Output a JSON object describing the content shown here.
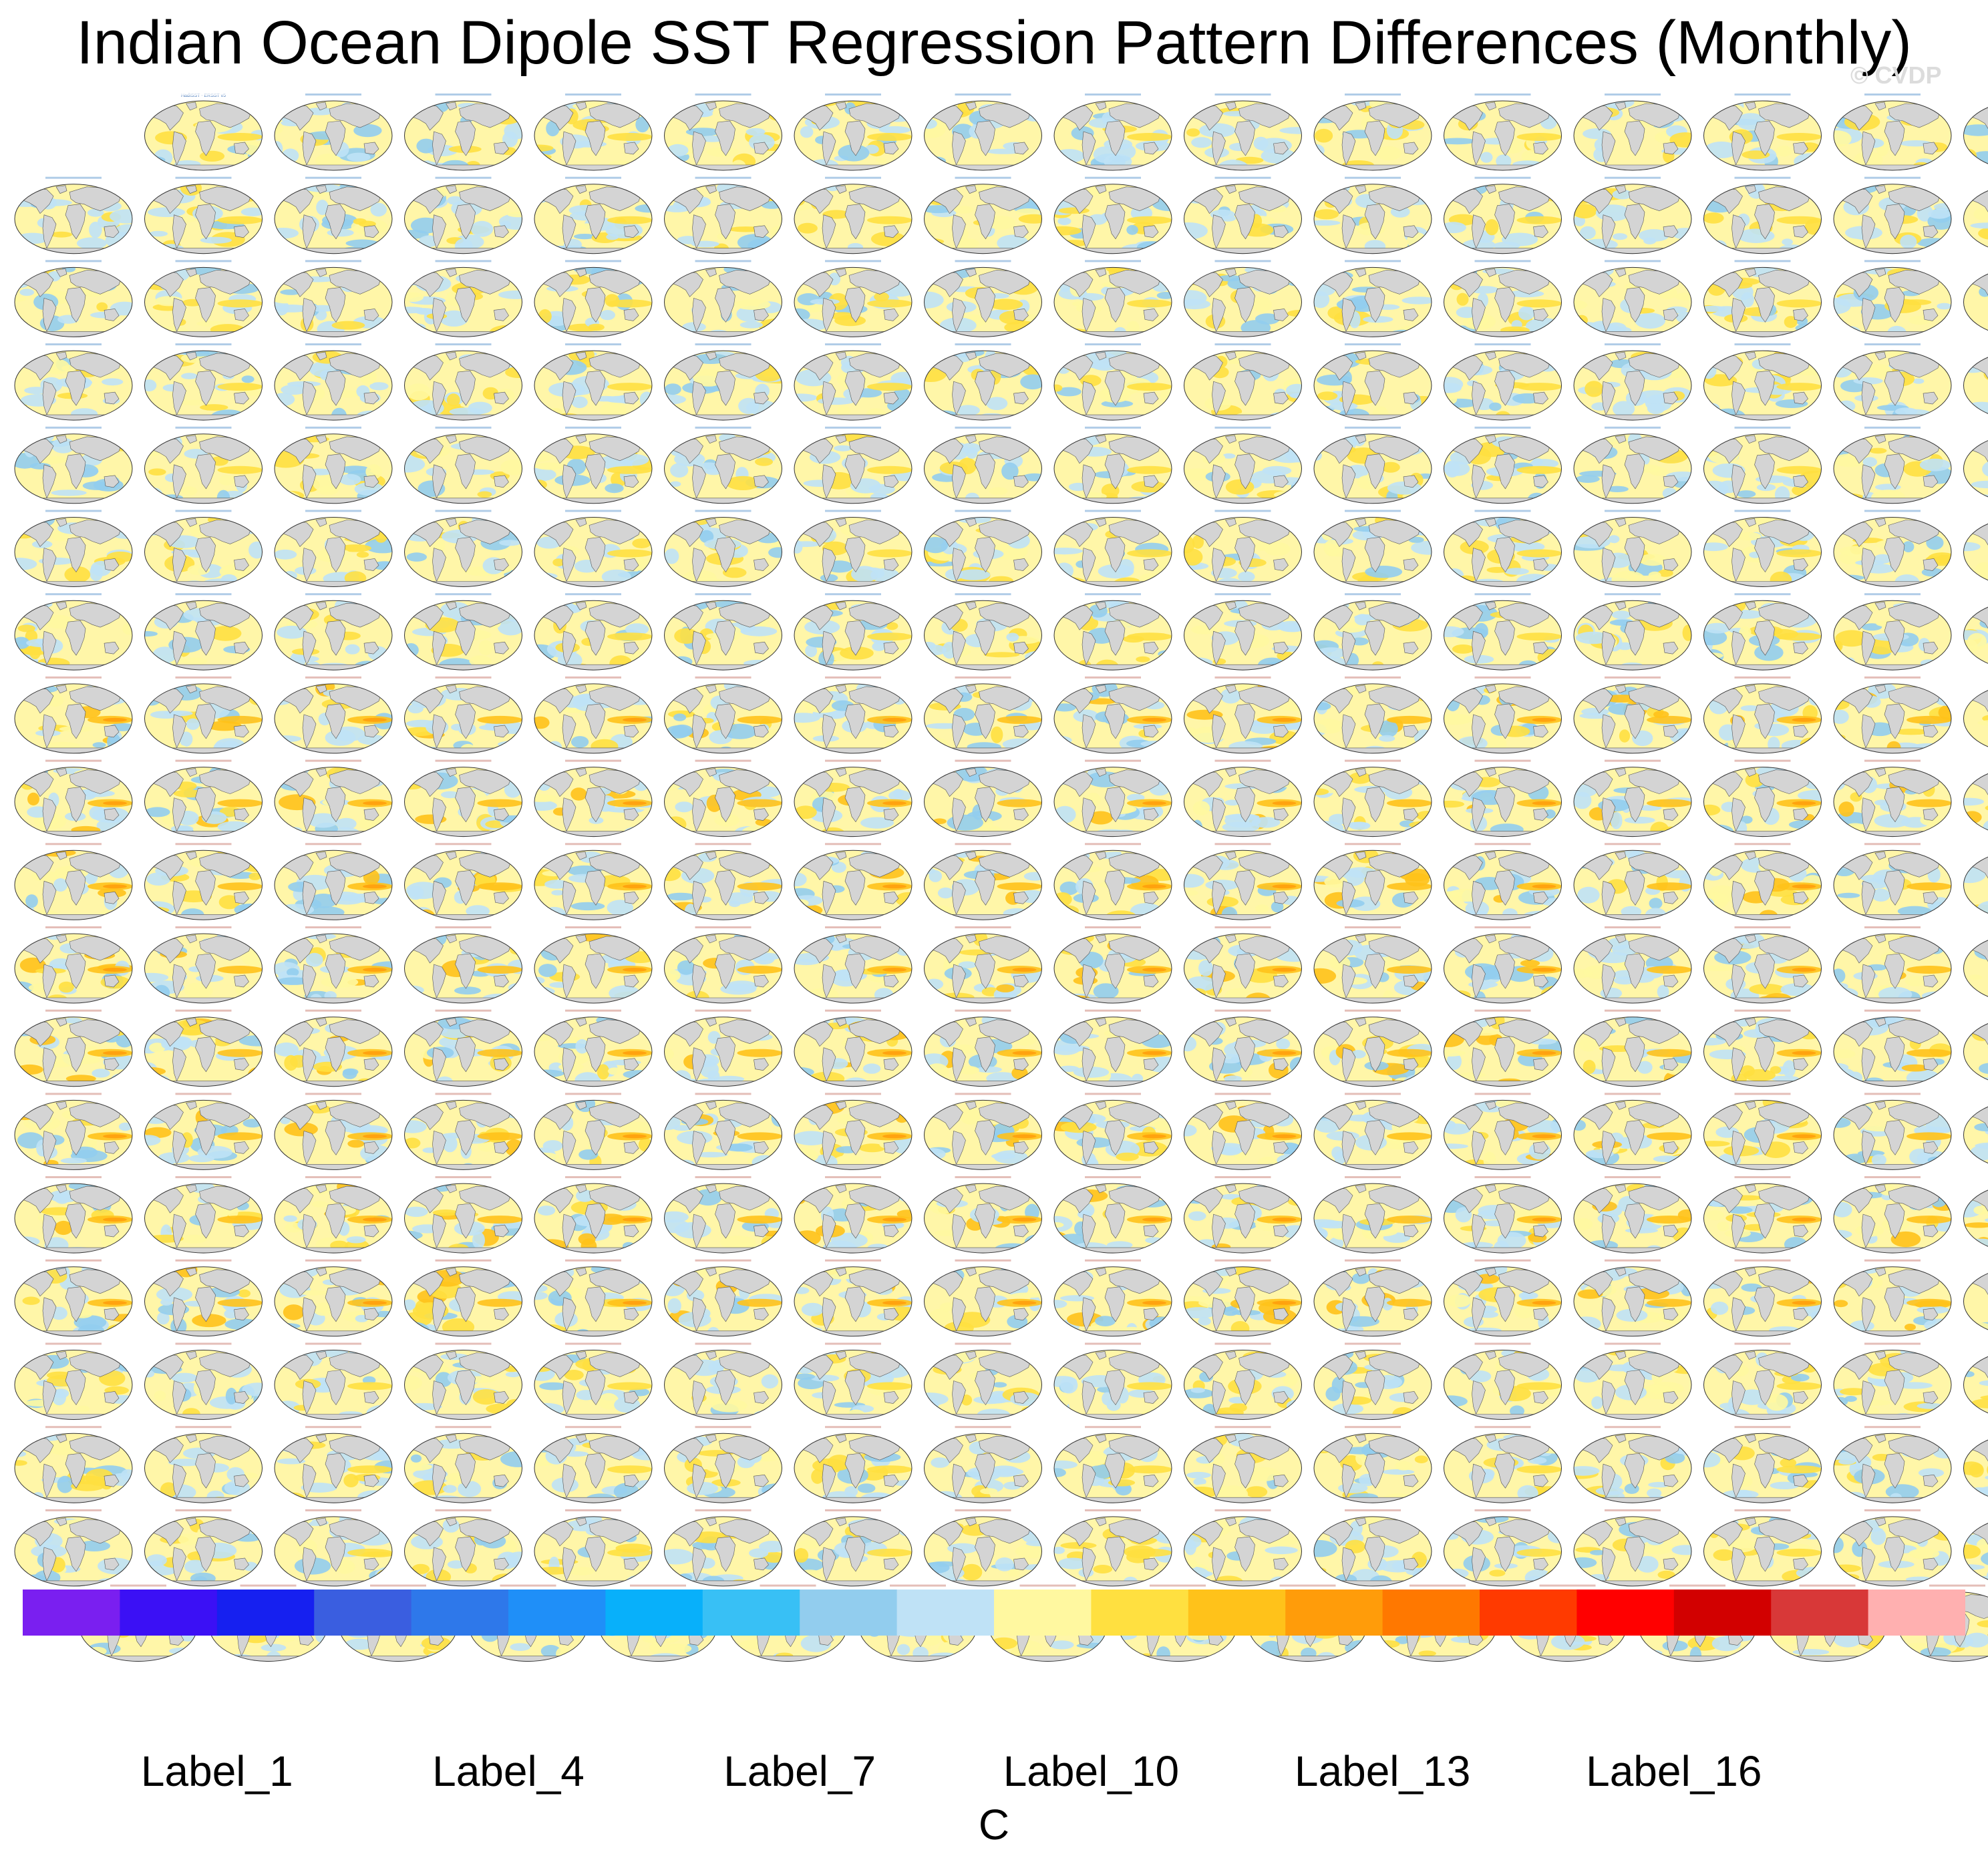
{
  "title": "Indian Ocean Dipole SST Regression Pattern Differences (Monthly)",
  "watermark": "© CVDP",
  "units": "C",
  "colorbar": {
    "colors": [
      "#7a1ff0",
      "#3b10f5",
      "#1620f0",
      "#3a5ee0",
      "#2e78ea",
      "#1f8ff8",
      "#08b0fa",
      "#38c0f5",
      "#92cdee",
      "#bfe2f6",
      "#fff8a0",
      "#ffe040",
      "#ffc21a",
      "#ff9c0a",
      "#ff7800",
      "#ff3a00",
      "#ff0000",
      "#d20000",
      "#d83838",
      "#ffb0b0"
    ],
    "labels": [
      {
        "text": "Label_1",
        "index": 2
      },
      {
        "text": "Label_4",
        "index": 5
      },
      {
        "text": "Label_7",
        "index": 8
      },
      {
        "text": "Label_10",
        "index": 11
      },
      {
        "text": "Label_13",
        "index": 14
      },
      {
        "text": "Label_16",
        "index": 17
      }
    ]
  },
  "chart_data": {
    "type": "heatmap",
    "title": "Indian Ocean Dipole SST Regression Pattern Differences (Monthly)",
    "description_grid": {
      "rows": 19,
      "columns": 16
    },
    "panel_counts_per_row": [
      15,
      16,
      16,
      16,
      16,
      16,
      16,
      16,
      16,
      16,
      16,
      16,
      16,
      16,
      16,
      16,
      16,
      16,
      15
    ],
    "first_panel_title": "HadISST - ERSST v5",
    "units": "C",
    "color_levels": 20
  }
}
